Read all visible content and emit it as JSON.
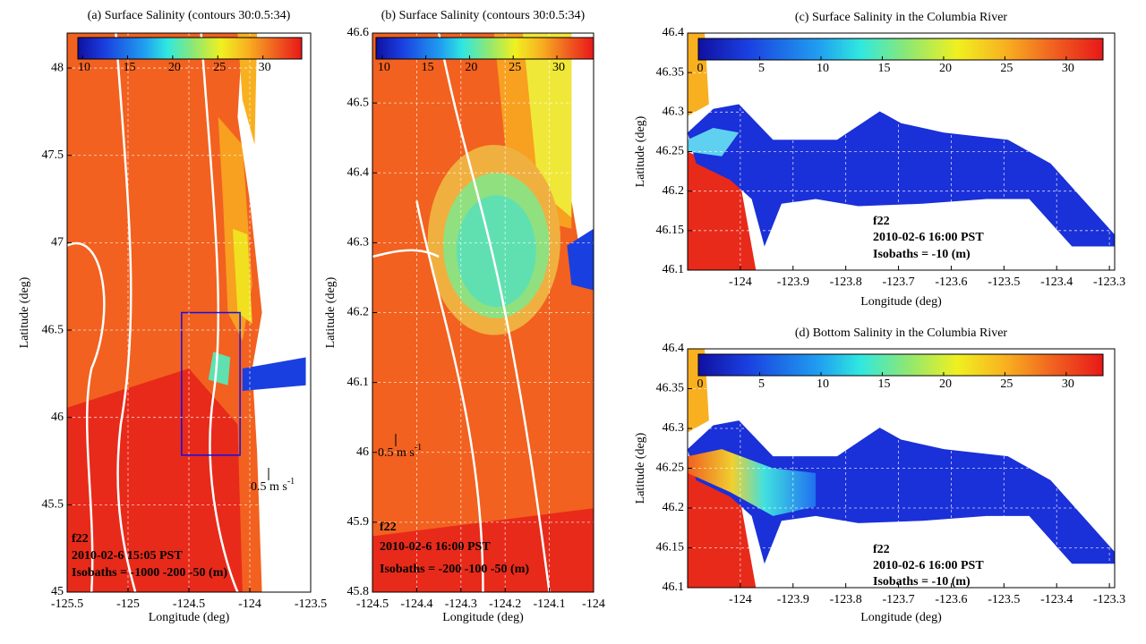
{
  "panels": [
    {
      "title": "(a) Surface Salinity (contours 30:0.5:34)",
      "xlabel": "Longitude (deg)",
      "ylabel": "Latitude (deg)",
      "xlim": [
        -125.5,
        -123.5
      ],
      "ylim": [
        45,
        48.2
      ],
      "xticks": [
        -125.5,
        -125,
        -124.5,
        -124,
        -123.5
      ],
      "yticks": [
        45,
        45.5,
        46,
        46.5,
        47,
        47.5,
        48
      ],
      "colorbar": {
        "lim": [
          9.5,
          34.3
        ],
        "ticks": [
          10,
          15,
          20,
          25,
          30
        ]
      },
      "annotations": [
        "f22",
        "2010-02-6 15:05 PST",
        "Isobaths = -1000 -200 -50 (m)"
      ],
      "scale_label": "0.5 m s",
      "scale_exp": "-1"
    },
    {
      "title": "(b) Surface Salinity (contours 30:0.5:34)",
      "xlabel": "Longitude (deg)",
      "ylabel": "Latitude (deg)",
      "xlim": [
        -124.5,
        -124
      ],
      "ylim": [
        45.8,
        46.6
      ],
      "xticks": [
        -124.5,
        -124.4,
        -124.3,
        -124.2,
        -124.1,
        -124
      ],
      "yticks": [
        45.8,
        45.9,
        46,
        46.1,
        46.2,
        46.3,
        46.4,
        46.5,
        46.6
      ],
      "colorbar": {
        "lim": [
          9.3,
          34.2
        ],
        "ticks": [
          10,
          15,
          20,
          25,
          30
        ]
      },
      "annotations": [
        "f22",
        "2010-02-6 16:00 PST",
        "Isobaths = -200 -100 -50 (m)"
      ],
      "scale_label": "0.5 m s",
      "scale_exp": "-1"
    },
    {
      "title": "(c) Surface Salinity in the Columbia River",
      "xlabel": "Longitude (deg)",
      "ylabel": "Latitude (deg)",
      "xlim": [
        -124.1,
        -123.29
      ],
      "ylim": [
        46.1,
        46.4
      ],
      "xticks": [
        -124,
        -123.9,
        -123.8,
        -123.7,
        -123.6,
        -123.5,
        -123.4,
        -123.3
      ],
      "yticks": [
        46.1,
        46.15,
        46.2,
        46.25,
        46.3,
        46.35,
        46.4
      ],
      "colorbar": {
        "lim": [
          0,
          33
        ],
        "ticks": [
          0,
          5,
          10,
          15,
          20,
          25,
          30
        ]
      },
      "annotations": [
        "f22",
        "2010-02-6 16:00 PST",
        "Isobaths = -10 (m)"
      ]
    },
    {
      "title": "(d) Bottom Salinity in the Columbia River",
      "xlabel": "Longitude (deg)",
      "ylabel": "Latitude (deg)",
      "xlim": [
        -124.1,
        -123.29
      ],
      "ylim": [
        46.1,
        46.4
      ],
      "xticks": [
        -124,
        -123.9,
        -123.8,
        -123.7,
        -123.6,
        -123.5,
        -123.4,
        -123.3
      ],
      "yticks": [
        46.1,
        46.15,
        46.2,
        46.25,
        46.3,
        46.35,
        46.4
      ],
      "colorbar": {
        "lim": [
          0,
          33
        ],
        "ticks": [
          0,
          5,
          10,
          15,
          20,
          25,
          30
        ]
      },
      "annotations": [
        "f22",
        "2010-02-6 16:00 PST",
        "Isobaths = -10 (m)"
      ]
    }
  ]
}
